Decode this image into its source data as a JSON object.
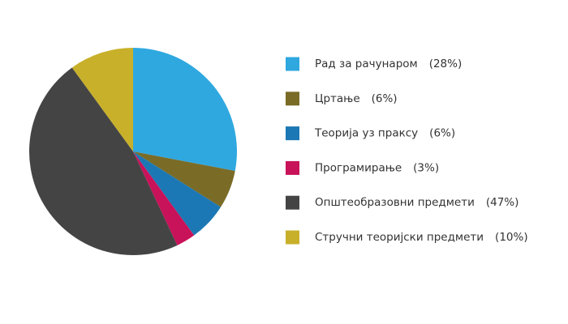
{
  "chart_data": {
    "type": "pie",
    "categories": [
      "Рад за рачунаром",
      "Цртање",
      "Теорија уз праксу",
      "Програмирање",
      "Општеобразовни предмети",
      "Стручни теоријски предмети"
    ],
    "values": [
      28,
      6,
      6,
      3,
      47,
      10
    ],
    "value_labels": [
      "(28%)",
      "(6%)",
      "(6%)",
      "(3%)",
      "(47%)",
      "(10%)"
    ],
    "colors": [
      "#2fa8e0",
      "#7a6b27",
      "#1c78b4",
      "#c8125a",
      "#444444",
      "#c8b02a"
    ]
  }
}
